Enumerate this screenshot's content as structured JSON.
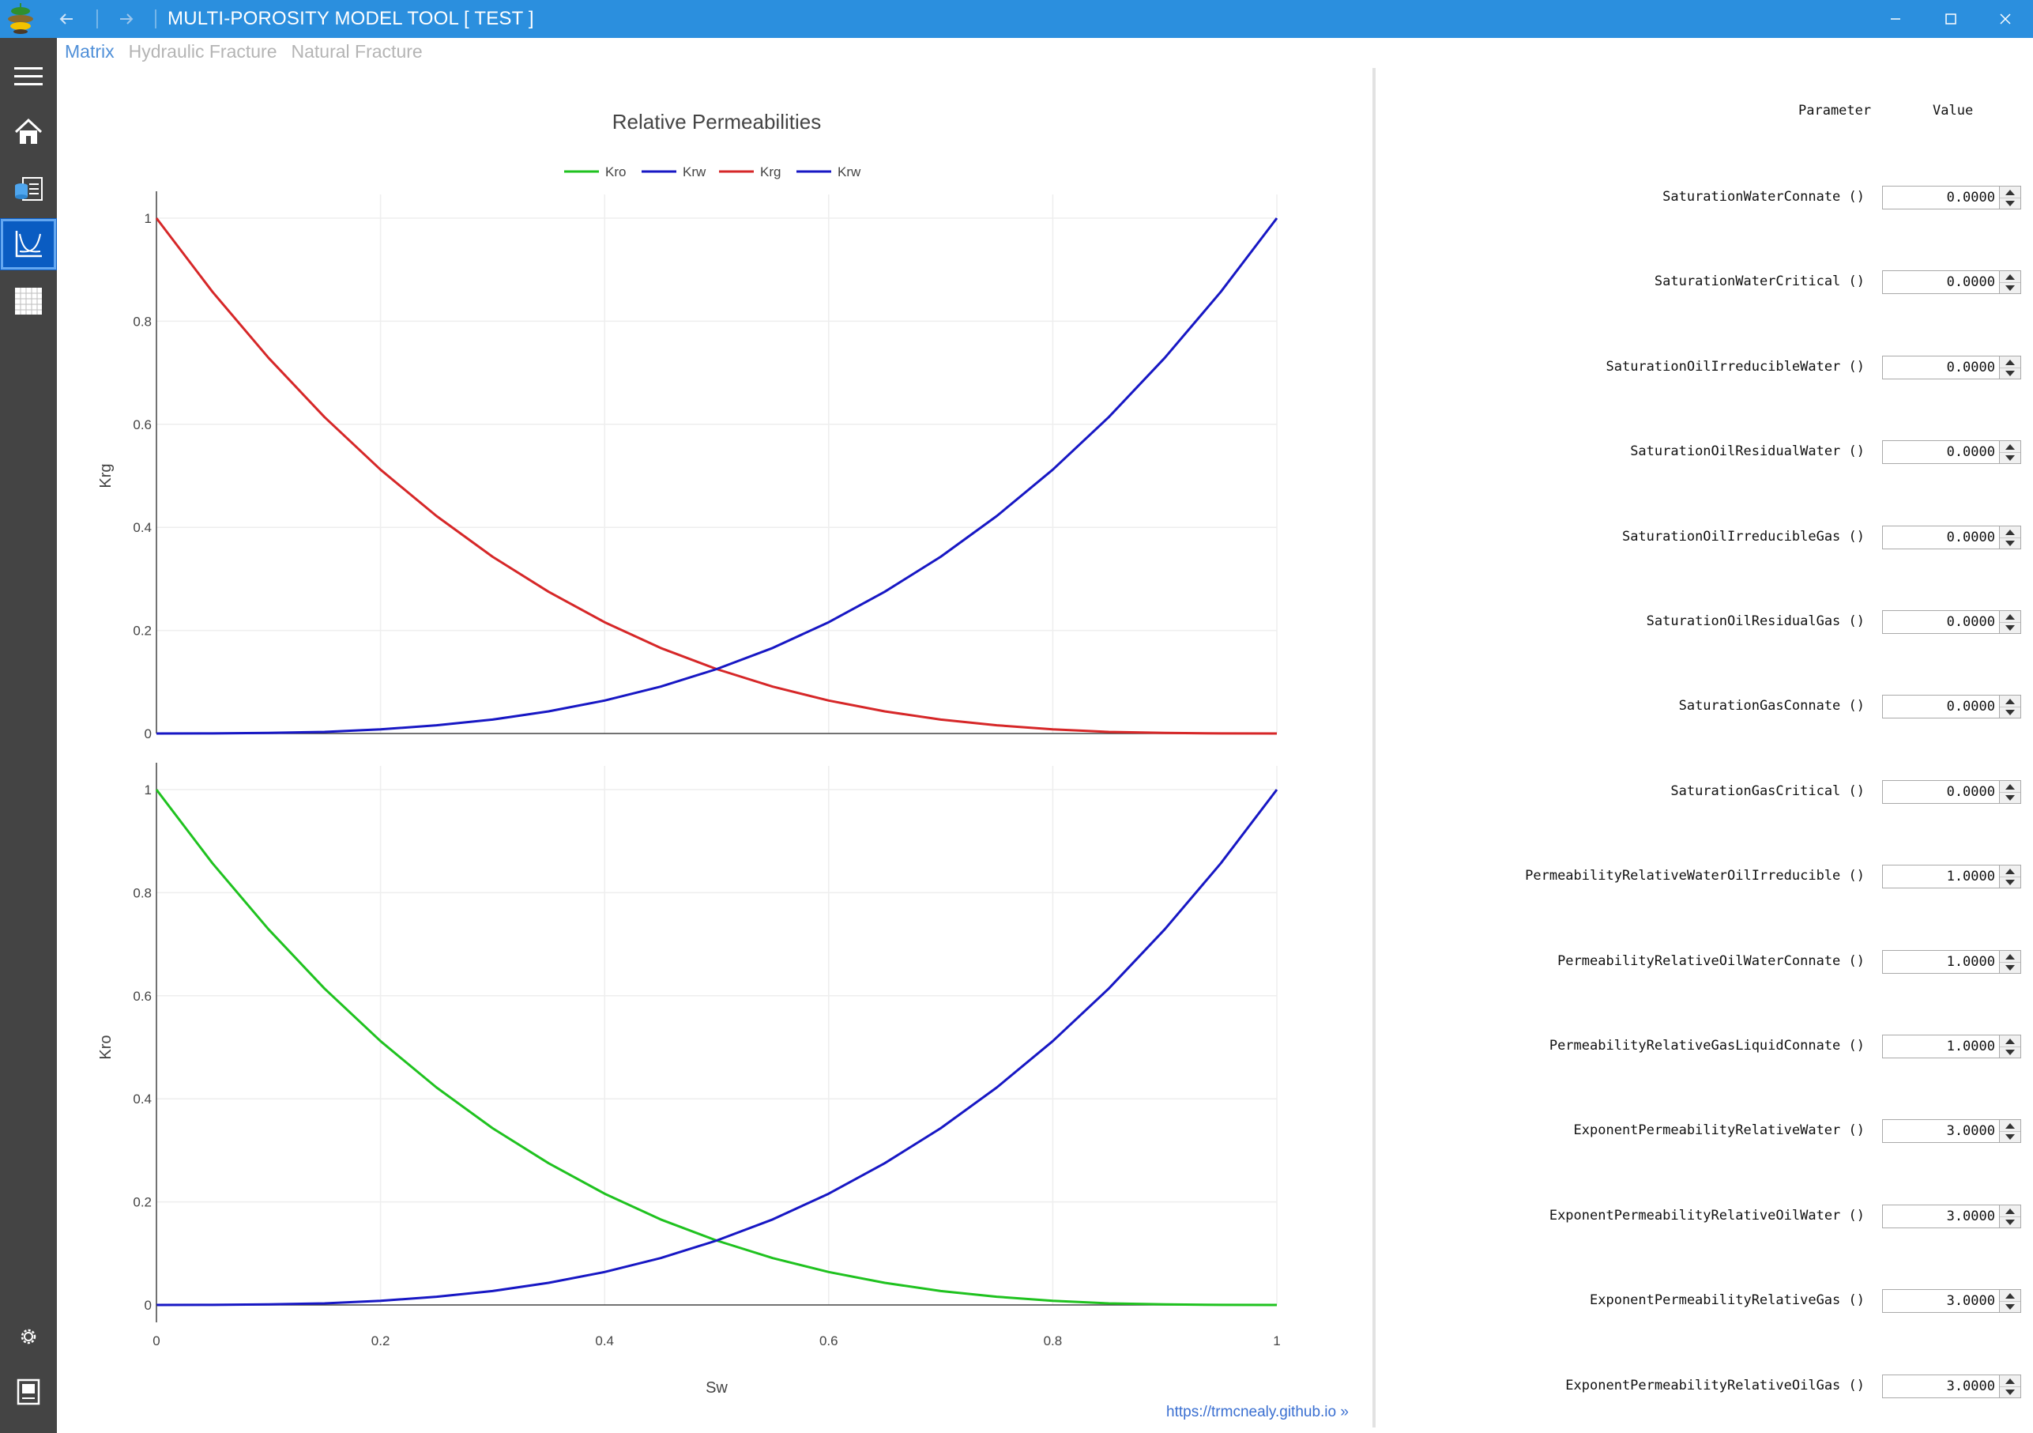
{
  "titlebar": {
    "title": "MULTI-POROSITY MODEL TOOL [ TEST ]",
    "back_icon": "arrow-left-icon",
    "forward_icon": "arrow-right-icon",
    "window_controls": [
      "minimize-icon",
      "maximize-icon",
      "close-icon"
    ],
    "accent_color": "#2b8fde"
  },
  "rail": {
    "items": [
      {
        "name": "menu",
        "icon": "hamburger-icon"
      },
      {
        "name": "home",
        "icon": "home-icon"
      },
      {
        "name": "data",
        "icon": "database-icon"
      },
      {
        "name": "charts",
        "icon": "chart-icon",
        "active": true
      },
      {
        "name": "grid",
        "icon": "grid-icon"
      },
      {
        "name": "settings",
        "icon": "gear-icon"
      },
      {
        "name": "notebook",
        "icon": "notebook-icon"
      }
    ],
    "background": "#444444",
    "active_color": "#0a5cc2"
  },
  "tabs": [
    {
      "label": "Matrix",
      "active": true
    },
    {
      "label": "Hydraulic Fracture",
      "active": false
    },
    {
      "label": "Natural Fracture",
      "active": false
    }
  ],
  "chart_data": {
    "type": "line",
    "title": "Relative Permeabilities",
    "xlabel": "Sw",
    "xlim": [
      0,
      1
    ],
    "x_ticks": [
      "0",
      "0.2",
      "0.4",
      "0.6",
      "0.8",
      "1"
    ],
    "x": [
      0,
      0.05,
      0.1,
      0.15,
      0.2,
      0.25,
      0.3,
      0.35,
      0.4,
      0.45,
      0.5,
      0.55,
      0.6,
      0.65,
      0.7,
      0.75,
      0.8,
      0.85,
      0.9,
      0.95,
      1
    ],
    "legend": {
      "position": "top-center",
      "entries": [
        "Kro",
        "Krw",
        "Krg",
        "Krw"
      ]
    },
    "grid": true,
    "subplots": [
      {
        "ylabel": "Krg",
        "ylim": [
          0,
          1
        ],
        "y_ticks": [
          "0",
          "0.2",
          "0.4",
          "0.6",
          "0.8",
          "1"
        ],
        "series": [
          {
            "name": "Krg",
            "color": "#d62728",
            "values": [
              1,
              0.857,
              0.729,
              0.614,
              0.512,
              0.422,
              0.343,
              0.275,
              0.216,
              0.166,
              0.125,
              0.091,
              0.064,
              0.043,
              0.027,
              0.016,
              0.008,
              0.003,
              0.001,
              0.0001,
              0
            ]
          },
          {
            "name": "Krw",
            "color": "#1717c4",
            "values": [
              0,
              0.0001,
              0.001,
              0.003,
              0.008,
              0.016,
              0.027,
              0.043,
              0.064,
              0.091,
              0.125,
              0.166,
              0.216,
              0.275,
              0.343,
              0.422,
              0.512,
              0.614,
              0.729,
              0.857,
              1
            ]
          }
        ]
      },
      {
        "ylabel": "Kro",
        "ylim": [
          0,
          1
        ],
        "y_ticks": [
          "0",
          "0.2",
          "0.4",
          "0.6",
          "0.8",
          "1"
        ],
        "series": [
          {
            "name": "Kro",
            "color": "#1fc21f",
            "values": [
              1,
              0.857,
              0.729,
              0.614,
              0.512,
              0.422,
              0.343,
              0.275,
              0.216,
              0.166,
              0.125,
              0.091,
              0.064,
              0.043,
              0.027,
              0.016,
              0.008,
              0.003,
              0.001,
              0.0001,
              0
            ]
          },
          {
            "name": "Krw",
            "color": "#1717c4",
            "values": [
              0,
              0.0001,
              0.001,
              0.003,
              0.008,
              0.016,
              0.027,
              0.043,
              0.064,
              0.091,
              0.125,
              0.166,
              0.216,
              0.275,
              0.343,
              0.422,
              0.512,
              0.614,
              0.729,
              0.857,
              1
            ]
          }
        ]
      }
    ]
  },
  "footer": {
    "link": "https://trmcnealy.github.io »"
  },
  "params": {
    "header_parameter": "Parameter",
    "header_value": "Value",
    "rows": [
      {
        "label": "SaturationWaterConnate ()",
        "value": "0.0000"
      },
      {
        "label": "SaturationWaterCritical ()",
        "value": "0.0000"
      },
      {
        "label": "SaturationOilIrreducibleWater ()",
        "value": "0.0000"
      },
      {
        "label": "SaturationOilResidualWater ()",
        "value": "0.0000"
      },
      {
        "label": "SaturationOilIrreducibleGas ()",
        "value": "0.0000"
      },
      {
        "label": "SaturationOilResidualGas ()",
        "value": "0.0000"
      },
      {
        "label": "SaturationGasConnate ()",
        "value": "0.0000"
      },
      {
        "label": "SaturationGasCritical ()",
        "value": "0.0000"
      },
      {
        "label": "PermeabilityRelativeWaterOilIrreducible ()",
        "value": "1.0000"
      },
      {
        "label": "PermeabilityRelativeOilWaterConnate ()",
        "value": "1.0000"
      },
      {
        "label": "PermeabilityRelativeGasLiquidConnate ()",
        "value": "1.0000"
      },
      {
        "label": "ExponentPermeabilityRelativeWater ()",
        "value": "3.0000"
      },
      {
        "label": "ExponentPermeabilityRelativeOilWater ()",
        "value": "3.0000"
      },
      {
        "label": "ExponentPermeabilityRelativeGas ()",
        "value": "3.0000"
      },
      {
        "label": "ExponentPermeabilityRelativeOilGas ()",
        "value": "3.0000"
      }
    ]
  }
}
